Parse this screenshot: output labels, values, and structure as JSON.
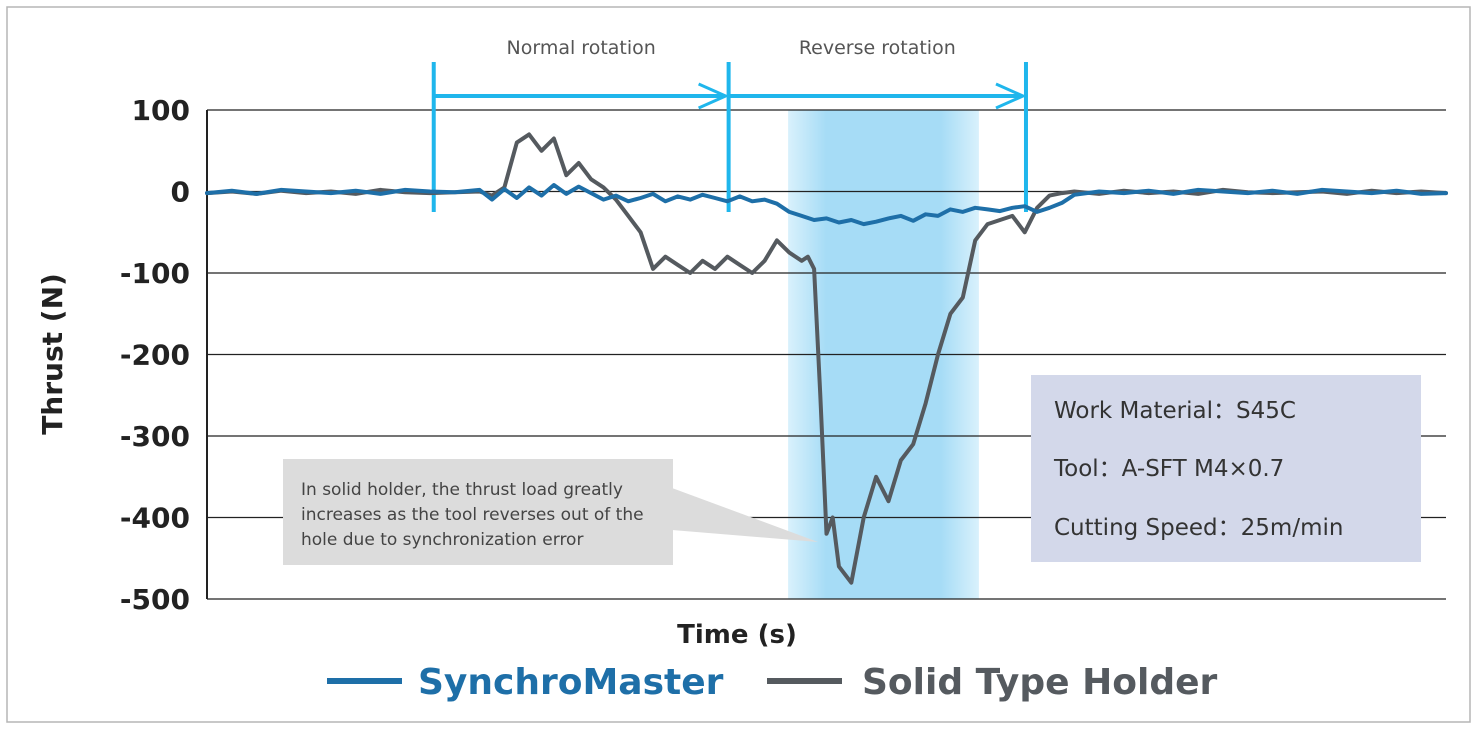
{
  "chart_data": {
    "type": "line",
    "title": "",
    "xlabel": "Time (s)",
    "ylabel": "Thrust (N)",
    "ylim": [
      -500,
      100
    ],
    "yticks": [
      "100",
      "0",
      "-100",
      "-200",
      "-300",
      "-400",
      "-500"
    ],
    "grid": true,
    "legend_position": "bottom",
    "colors": {
      "synchro": "#1e6fa8",
      "solid": "#555a5f",
      "arrow": "#1fb6ec",
      "highlight": "#a8dcf5",
      "infobox": "#d4d8ea",
      "callout": "#dcdcdc"
    },
    "phases": [
      {
        "label": "Normal rotation",
        "start": 0.183,
        "end": 0.421
      },
      {
        "label": "Reverse rotation",
        "start": 0.421,
        "end": 0.661
      }
    ],
    "highlight_band": {
      "start": 0.469,
      "end": 0.623
    },
    "series": [
      {
        "name": "SynchroMaster",
        "x": [
          0,
          0.02,
          0.04,
          0.06,
          0.08,
          0.1,
          0.12,
          0.14,
          0.16,
          0.18,
          0.2,
          0.22,
          0.23,
          0.24,
          0.25,
          0.26,
          0.27,
          0.28,
          0.29,
          0.3,
          0.31,
          0.32,
          0.33,
          0.34,
          0.35,
          0.36,
          0.37,
          0.38,
          0.39,
          0.4,
          0.41,
          0.42,
          0.43,
          0.44,
          0.45,
          0.46,
          0.47,
          0.48,
          0.49,
          0.5,
          0.51,
          0.52,
          0.53,
          0.54,
          0.55,
          0.56,
          0.57,
          0.58,
          0.59,
          0.6,
          0.61,
          0.62,
          0.63,
          0.64,
          0.65,
          0.66,
          0.67,
          0.68,
          0.69,
          0.7,
          0.72,
          0.74,
          0.76,
          0.78,
          0.8,
          0.82,
          0.84,
          0.86,
          0.88,
          0.9,
          0.92,
          0.94,
          0.96,
          0.98,
          1.0
        ],
        "values": [
          -2,
          1,
          -3,
          2,
          0,
          -2,
          1,
          -3,
          2,
          0,
          -1,
          2,
          -10,
          3,
          -8,
          5,
          -5,
          8,
          -3,
          6,
          -2,
          -10,
          -5,
          -12,
          -8,
          -3,
          -12,
          -6,
          -10,
          -4,
          -8,
          -12,
          -6,
          -12,
          -10,
          -15,
          -25,
          -30,
          -35,
          -33,
          -38,
          -35,
          -40,
          -37,
          -33,
          -30,
          -36,
          -28,
          -30,
          -22,
          -25,
          -20,
          -22,
          -24,
          -20,
          -18,
          -25,
          -20,
          -14,
          -4,
          0,
          -2,
          1,
          -3,
          2,
          0,
          -2,
          1,
          -3,
          2,
          0,
          -2,
          1,
          -3,
          -2
        ]
      },
      {
        "name": "Solid Type Holder",
        "x": [
          0,
          0.02,
          0.04,
          0.06,
          0.08,
          0.1,
          0.12,
          0.14,
          0.16,
          0.18,
          0.2,
          0.22,
          0.23,
          0.24,
          0.25,
          0.26,
          0.27,
          0.28,
          0.29,
          0.3,
          0.31,
          0.32,
          0.33,
          0.34,
          0.35,
          0.36,
          0.37,
          0.38,
          0.39,
          0.4,
          0.41,
          0.42,
          0.43,
          0.44,
          0.45,
          0.46,
          0.47,
          0.48,
          0.485,
          0.49,
          0.495,
          0.5,
          0.505,
          0.51,
          0.52,
          0.53,
          0.54,
          0.55,
          0.56,
          0.57,
          0.58,
          0.59,
          0.6,
          0.61,
          0.62,
          0.63,
          0.64,
          0.65,
          0.66,
          0.67,
          0.68,
          0.69,
          0.7,
          0.72,
          0.74,
          0.76,
          0.78,
          0.8,
          0.82,
          0.84,
          0.86,
          0.88,
          0.9,
          0.92,
          0.94,
          0.96,
          0.98,
          1.0
        ],
        "values": [
          -2,
          0,
          -3,
          1,
          -2,
          0,
          -3,
          2,
          -1,
          -2,
          -1,
          0,
          -5,
          5,
          60,
          70,
          50,
          65,
          20,
          35,
          15,
          5,
          -10,
          -30,
          -50,
          -95,
          -80,
          -90,
          -100,
          -85,
          -95,
          -80,
          -90,
          -100,
          -85,
          -60,
          -75,
          -85,
          -80,
          -95,
          -250,
          -420,
          -400,
          -460,
          -480,
          -400,
          -350,
          -380,
          -330,
          -310,
          -260,
          -200,
          -150,
          -130,
          -60,
          -40,
          -35,
          -30,
          -50,
          -20,
          -5,
          -2,
          0,
          -3,
          1,
          -2,
          0,
          -3,
          2,
          -1,
          -2,
          -1,
          0,
          -3,
          1,
          -2,
          0,
          -2
        ]
      }
    ],
    "callout_lines": [
      "In solid holder, the thrust load greatly",
      "increases as the tool reverses out of the",
      "hole due to synchronization error"
    ],
    "conditions": {
      "line1": "Work Material：S45C",
      "line2": "Tool：A-SFT  M4×0.7",
      "line3": "Cutting Speed：25m/min"
    }
  }
}
